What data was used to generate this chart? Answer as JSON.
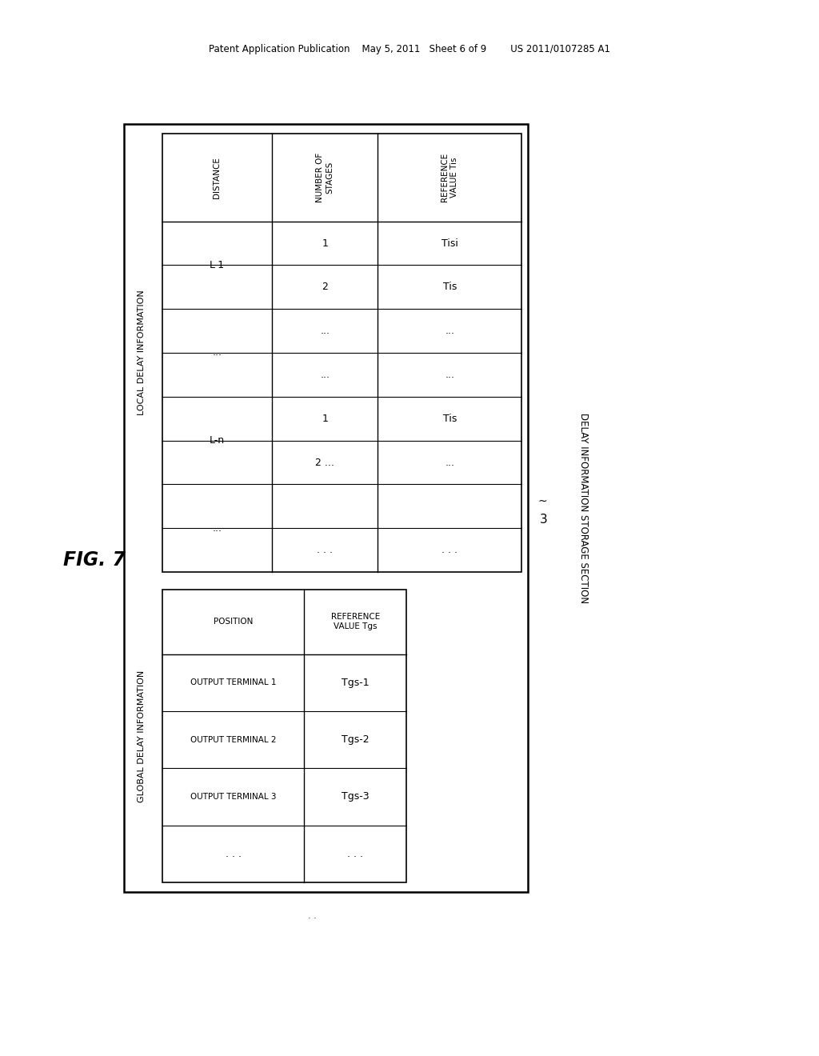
{
  "bg_color": "#ffffff",
  "header_text": "Patent Application Publication    May 5, 2011   Sheet 6 of 9        US 2011/0107285 A1",
  "fig_label": "FIG. 7",
  "delay_storage_label": "DELAY INFORMATION STORAGE SECTION",
  "delay_storage_number": "3",
  "global_section_label": "GLOBAL DELAY INFORMATION",
  "local_section_label": "LOCAL DELAY INFORMATION",
  "local_col_headers": [
    "DISTANCE",
    "NUMBER OF\nSTAGES",
    "REFERENCE\nVALUE Tis"
  ],
  "local_distance_data": [
    [
      "L-1",
      0,
      2
    ],
    [
      "...",
      2,
      2
    ],
    [
      "L-n",
      4,
      2
    ],
    [
      "...",
      6,
      2
    ]
  ],
  "local_stages_data": [
    "1",
    "2",
    "...",
    "...",
    "1",
    "2 ...",
    "",
    ". . ."
  ],
  "local_ref_data": [
    "Tisi",
    "Tis",
    "...",
    "...",
    "Tis",
    "...",
    "",
    ". . ."
  ],
  "global_col_headers": [
    "POSITION",
    "REFERENCE\nVALUE Tgs"
  ],
  "global_positions": [
    "OUTPUT TERMINAL 1",
    "OUTPUT TERMINAL 2",
    "OUTPUT TERMINAL 3",
    ". . ."
  ],
  "global_refs": [
    "Tgs-1",
    "Tgs-2",
    "Tgs-3",
    ". . ."
  ]
}
